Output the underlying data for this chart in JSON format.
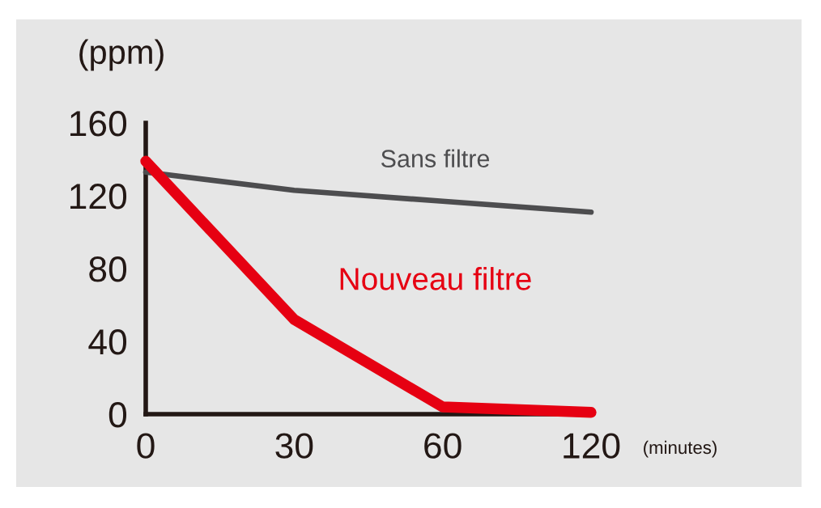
{
  "chart_data": {
    "type": "line",
    "xlabel": "(minutes)",
    "ylabel": "(ppm)",
    "categories": [
      "0",
      "30",
      "60",
      "120"
    ],
    "series": [
      {
        "name": "Sans filtre",
        "color": "#4d4d4f",
        "values": [
          133,
          123,
          117,
          111
        ]
      },
      {
        "name": "Nouveau filtre",
        "color": "#e60012",
        "values": [
          139,
          52,
          4,
          1
        ]
      }
    ],
    "ylim": [
      0,
      160
    ],
    "yticks": [
      0,
      40,
      80,
      120,
      160
    ],
    "grid": false,
    "legend": false,
    "marker": "none",
    "line_style": "solid"
  }
}
